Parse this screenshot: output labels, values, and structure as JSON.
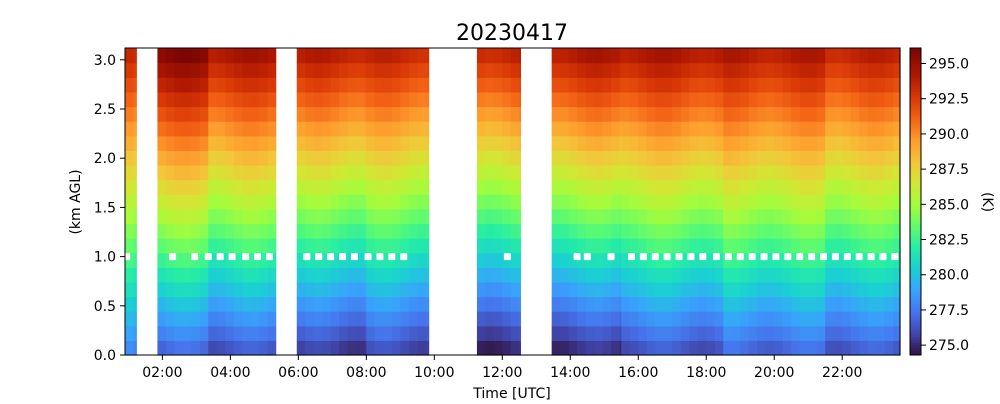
{
  "chart_data": {
    "type": "heatmap",
    "title": "20230417",
    "xlabel": "Time [UTC]",
    "ylabel": "(km AGL)",
    "colorbar_label": "(K)",
    "x_unit": "hours UTC",
    "xlim": [
      0.9,
      23.7
    ],
    "ylim": [
      0.0,
      3.12
    ],
    "x_ticks": [
      2,
      4,
      6,
      8,
      10,
      12,
      14,
      16,
      18,
      20,
      22
    ],
    "x_tick_labels": [
      "02:00",
      "04:00",
      "06:00",
      "08:00",
      "10:00",
      "12:00",
      "14:00",
      "16:00",
      "18:00",
      "20:00",
      "22:00"
    ],
    "y_ticks": [
      0.0,
      0.5,
      1.0,
      1.5,
      2.0,
      2.5,
      3.0
    ],
    "y_tick_labels": [
      "0.0",
      "0.5",
      "1.0",
      "1.5",
      "2.0",
      "2.5",
      "3.0"
    ],
    "colorbar_range": [
      274.3,
      296.1
    ],
    "colorbar_ticks": [
      275.0,
      277.5,
      280.0,
      282.5,
      285.0,
      287.5,
      290.0,
      292.5,
      295.0
    ],
    "colorbar_tick_labels": [
      "275.0",
      "277.5",
      "280.0",
      "282.5",
      "285.0",
      "287.5",
      "290.0",
      "292.5",
      "295.0"
    ],
    "colormap": "turbo",
    "data_gaps_hours": [
      [
        1.25,
        1.85
      ],
      [
        5.35,
        5.95
      ],
      [
        9.85,
        11.25
      ],
      [
        12.55,
        13.45
      ]
    ],
    "profile_segments": [
      {
        "x_start": 0.9,
        "x_end": 1.25,
        "surface_K": 277.5,
        "top_K": 293.5
      },
      {
        "x_start": 1.85,
        "x_end": 3.35,
        "surface_K": 276.5,
        "top_K": 296.0
      },
      {
        "x_start": 3.35,
        "x_end": 5.35,
        "surface_K": 276.0,
        "top_K": 294.8
      },
      {
        "x_start": 5.95,
        "x_end": 8.0,
        "surface_K": 275.2,
        "top_K": 294.2
      },
      {
        "x_start": 8.0,
        "x_end": 9.85,
        "surface_K": 275.6,
        "top_K": 293.8
      },
      {
        "x_start": 11.25,
        "x_end": 12.55,
        "surface_K": 274.6,
        "top_K": 294.0
      },
      {
        "x_start": 13.45,
        "x_end": 15.5,
        "surface_K": 274.8,
        "top_K": 294.6
      },
      {
        "x_start": 15.5,
        "x_end": 18.5,
        "surface_K": 276.0,
        "top_K": 294.6
      },
      {
        "x_start": 18.5,
        "x_end": 21.5,
        "surface_K": 276.6,
        "top_K": 294.4
      },
      {
        "x_start": 21.5,
        "x_end": 23.7,
        "surface_K": 276.2,
        "top_K": 294.0
      }
    ],
    "marker_height_km": 1.0,
    "marker_times_hours": [
      0.95,
      2.3,
      2.95,
      3.35,
      3.7,
      4.05,
      4.45,
      4.8,
      5.15,
      6.25,
      6.6,
      6.95,
      7.3,
      7.65,
      8.05,
      8.4,
      8.75,
      9.1,
      12.15,
      14.2,
      14.5,
      15.2,
      15.8,
      16.15,
      16.5,
      16.85,
      17.2,
      17.55,
      17.9,
      18.3,
      18.65,
      19.0,
      19.35,
      19.7,
      20.05,
      20.4,
      20.75,
      21.1,
      21.45,
      21.8,
      22.15,
      22.5,
      22.85,
      23.2,
      23.55
    ]
  }
}
